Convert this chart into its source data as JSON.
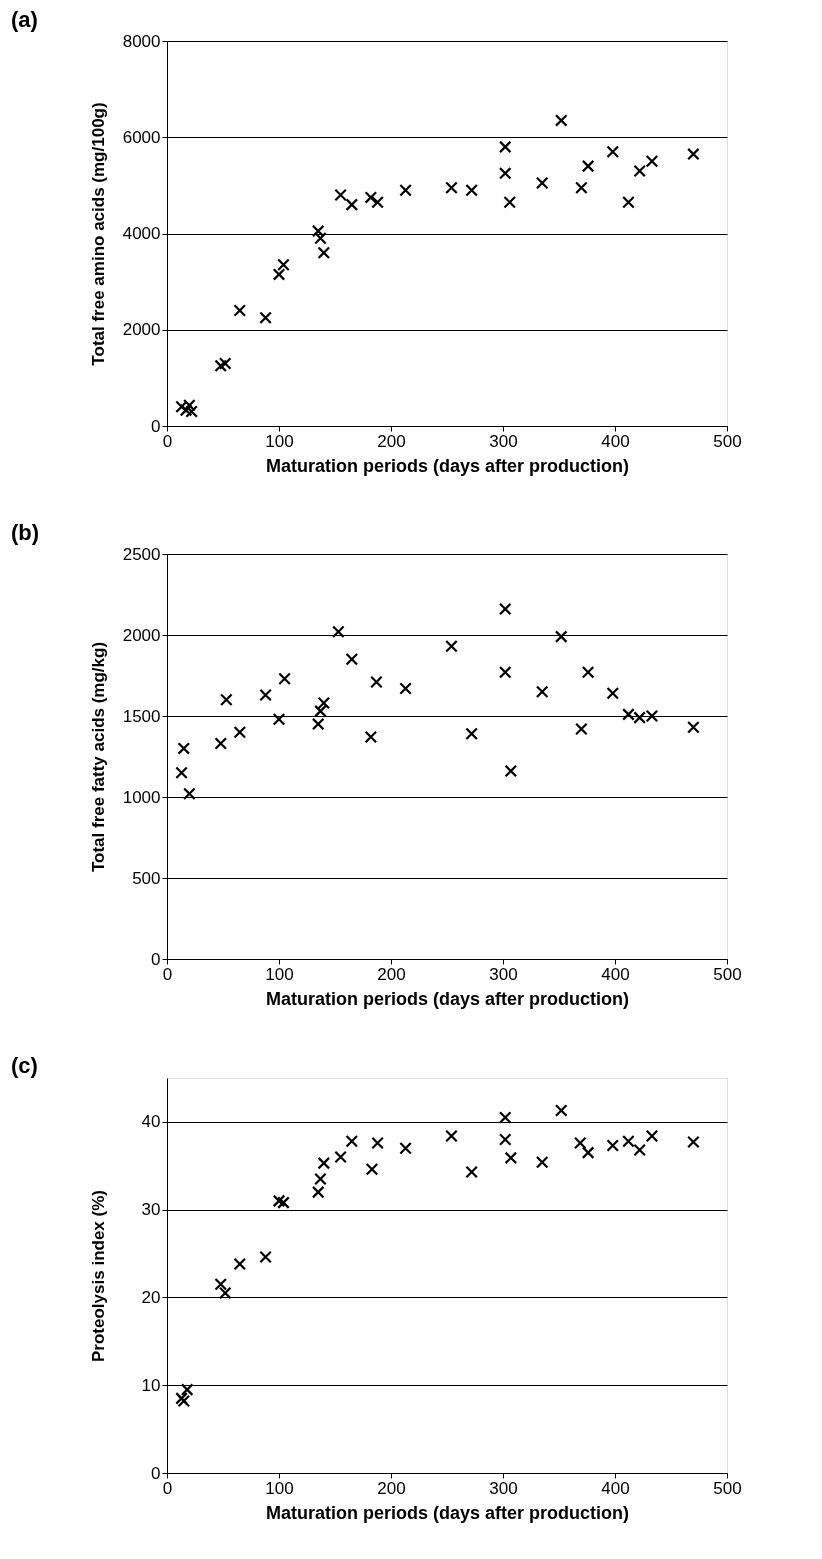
{
  "chart_data": [
    {
      "type": "scatter",
      "title": "(a)",
      "xlabel": "Maturation periods (days after production)",
      "ylabel": "Total free amino acids (mg/100g)",
      "marker": "cross",
      "grid": "y",
      "xlim": [
        0,
        500
      ],
      "xticks": [
        0,
        100,
        200,
        300,
        400,
        500
      ],
      "ylim": [
        0,
        8000
      ],
      "yticks": [
        0,
        2000,
        4000,
        6000,
        8000
      ],
      "series": [
        {
          "color": "#000000",
          "x": [
            13,
            17,
            20,
            22,
            48,
            52,
            65,
            88,
            100,
            104,
            135,
            137,
            140,
            155,
            165,
            182,
            188,
            213,
            254,
            272,
            302,
            302,
            306,
            335,
            352,
            370,
            376,
            398,
            412,
            422,
            433,
            470
          ],
          "values": [
            400,
            330,
            430,
            300,
            1250,
            1300,
            2400,
            2250,
            3150,
            3350,
            4050,
            3900,
            3600,
            4800,
            4600,
            4750,
            4650,
            4900,
            4950,
            4900,
            5800,
            5250,
            4650,
            5050,
            6350,
            4950,
            5400,
            5700,
            4650,
            5300,
            5500,
            5650
          ]
        }
      ]
    },
    {
      "type": "scatter",
      "title": "(b)",
      "xlabel": "Maturation  periods  (days after production)",
      "ylabel": "Total free fatty acids (mg/kg)",
      "marker": "cross",
      "grid": "y",
      "xlim": [
        0,
        500
      ],
      "xticks": [
        0,
        100,
        200,
        300,
        400,
        500
      ],
      "ylim": [
        0,
        2500
      ],
      "yticks": [
        0,
        500,
        1000,
        1500,
        2000,
        2500
      ],
      "series": [
        {
          "color": "#000000",
          "x": [
            13,
            15,
            20,
            48,
            53,
            65,
            88,
            100,
            105,
            135,
            137,
            140,
            153,
            165,
            182,
            187,
            213,
            254,
            272,
            302,
            302,
            307,
            335,
            352,
            370,
            376,
            398,
            412,
            422,
            433,
            470
          ],
          "values": [
            1150,
            1300,
            1020,
            1330,
            1600,
            1400,
            1630,
            1480,
            1730,
            1450,
            1530,
            1580,
            2020,
            1850,
            1370,
            1710,
            1670,
            1930,
            1390,
            2160,
            1770,
            1160,
            1650,
            1990,
            1420,
            1770,
            1640,
            1510,
            1490,
            1500,
            1430
          ]
        }
      ]
    },
    {
      "type": "scatter",
      "title": "(c)",
      "xlabel": "Maturation periods (days after production)",
      "ylabel": "Proteolysis index (%)",
      "marker": "cross",
      "grid": "y",
      "xlim": [
        0,
        500
      ],
      "xticks": [
        0,
        100,
        200,
        300,
        400,
        500
      ],
      "ylim": [
        0,
        45
      ],
      "yticks": [
        0,
        10,
        20,
        30,
        40
      ],
      "series": [
        {
          "color": "#000000",
          "x": [
            13,
            15,
            18,
            48,
            52,
            65,
            88,
            100,
            104,
            135,
            137,
            140,
            155,
            165,
            183,
            188,
            213,
            254,
            272,
            302,
            302,
            307,
            335,
            352,
            369,
            376,
            398,
            412,
            422,
            433,
            470
          ],
          "values": [
            8.5,
            8.2,
            9.5,
            21.5,
            20.5,
            23.8,
            24.6,
            31,
            30.8,
            32,
            33.5,
            35.3,
            36,
            37.8,
            34.6,
            37.6,
            37,
            38.4,
            34.3,
            40.5,
            38,
            35.9,
            35.4,
            41.3,
            37.6,
            36.5,
            37.3,
            37.8,
            36.8,
            38.4,
            37.7
          ]
        }
      ]
    }
  ]
}
